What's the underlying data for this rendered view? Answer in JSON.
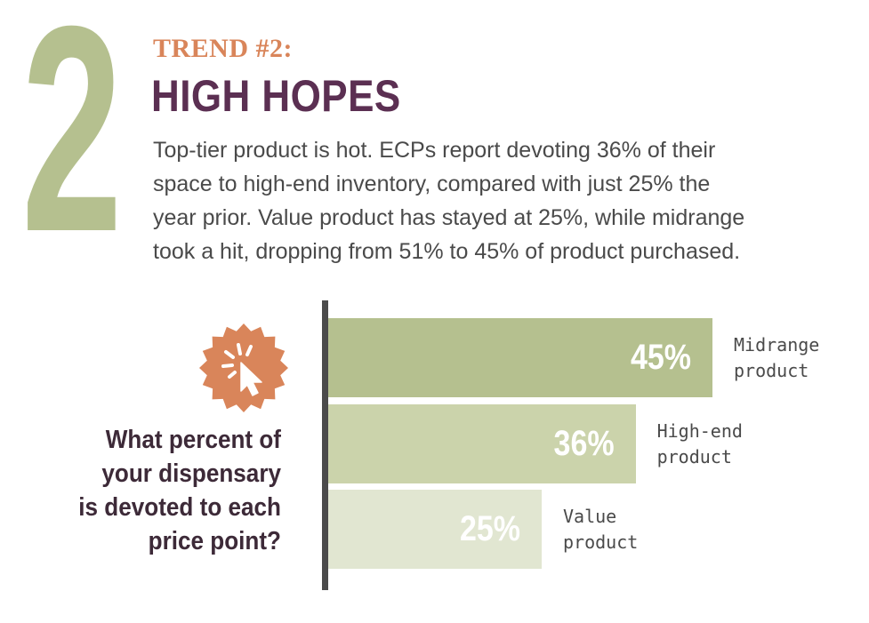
{
  "header": {
    "number": "2",
    "trend_label": "TREND #2:",
    "headline": "HIGH HOPES",
    "body_lines": [
      "Top-tier product is hot. ECPs report devoting 36% of their",
      "space to high-end inventory, compared with just 25% the",
      "year prior. Value product has stayed at 25%, while midrange",
      "took a hit, dropping from 51% to 45% of product purchased."
    ]
  },
  "question": {
    "lines": [
      "What percent of",
      "your dispensary",
      "is devoted to each",
      "price point?"
    ],
    "icon": "cursor-click-icon"
  },
  "colors": {
    "accent_orange": "#d9855a",
    "headline_purple": "#5b2f52",
    "midrange": "#b5c08f",
    "high_end": "#cbd3ab",
    "value": "#e1e6d1"
  },
  "chart_data": {
    "type": "bar",
    "orientation": "horizontal",
    "categories": [
      "Midrange product",
      "High-end product",
      "Value product"
    ],
    "label_lines": [
      [
        "Midrange",
        "product"
      ],
      [
        "High-end",
        "product"
      ],
      [
        "Value",
        "product"
      ]
    ],
    "values": [
      45,
      36,
      25
    ],
    "value_labels": [
      "45%",
      "36%",
      "25%"
    ],
    "unit": "%",
    "xlim": [
      0,
      50
    ],
    "grid": false
  }
}
